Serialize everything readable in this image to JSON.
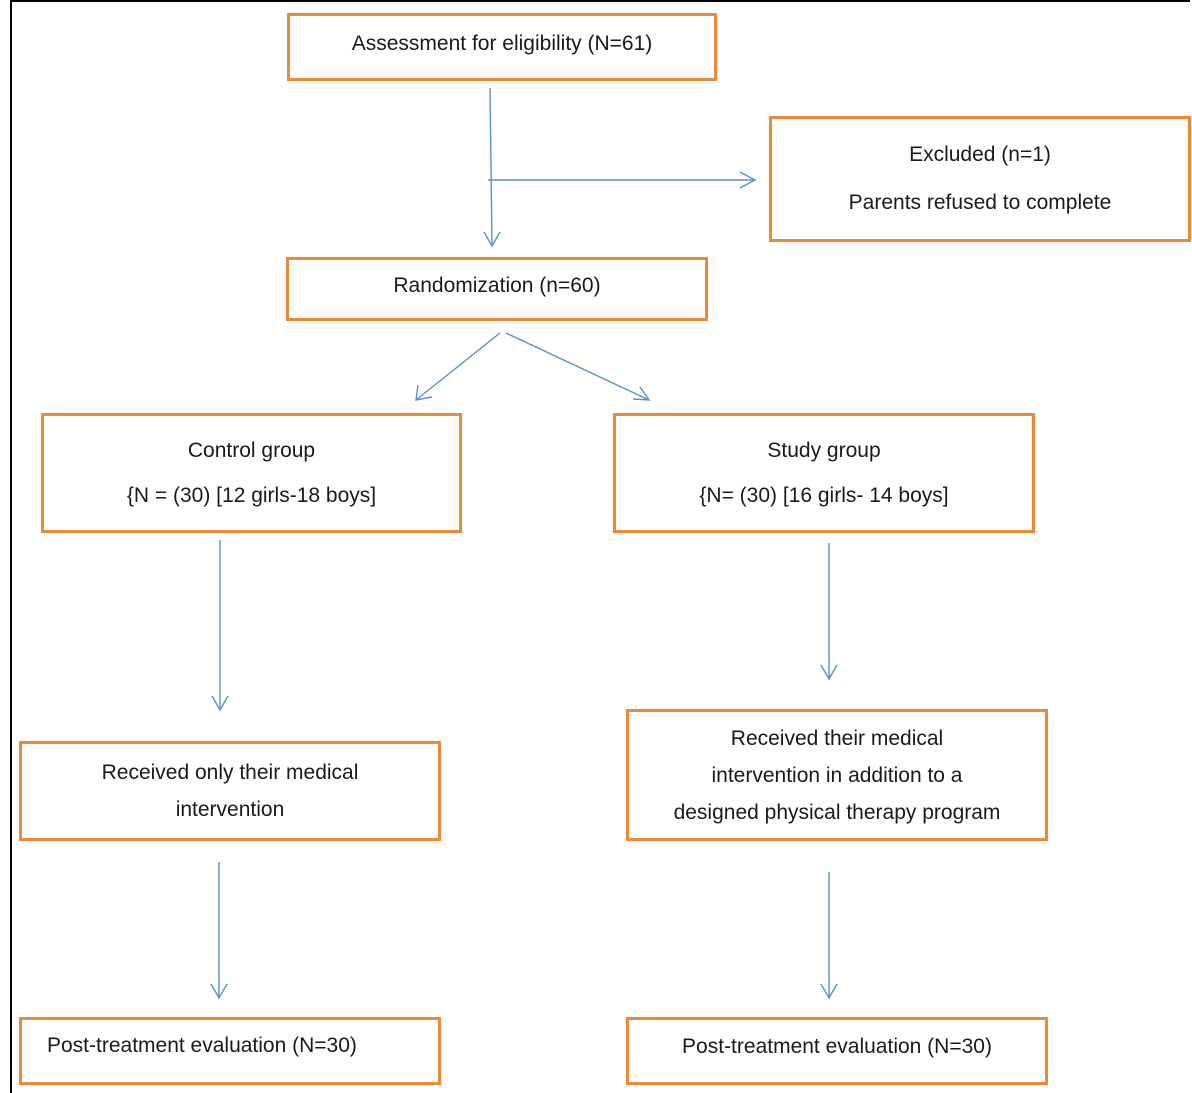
{
  "assessment": {
    "text": "Assessment for eligibility (N=61)"
  },
  "excluded": {
    "title": "Excluded (n=1)",
    "reason": "Parents refused to complete"
  },
  "randomization": {
    "text": "Randomization (n=60)"
  },
  "control_group": {
    "title": "Control group",
    "details": "{N = (30) [12 girls-18 boys]"
  },
  "study_group": {
    "title": "Study group",
    "details": "{N= (30) [16 girls- 14 boys]"
  },
  "control_intervention": {
    "line1": "Received only their medical",
    "line2": "intervention"
  },
  "study_intervention": {
    "line1": "Received their medical",
    "line2": "intervention in addition to a",
    "line3": "designed physical therapy program"
  },
  "control_evaluation": {
    "text": "Post-treatment evaluation (N=30)"
  },
  "study_evaluation": {
    "text": "Post-treatment evaluation (N=30)"
  },
  "colors": {
    "box_border": "#ed8a3a",
    "arrow": "#5b8fd0"
  }
}
